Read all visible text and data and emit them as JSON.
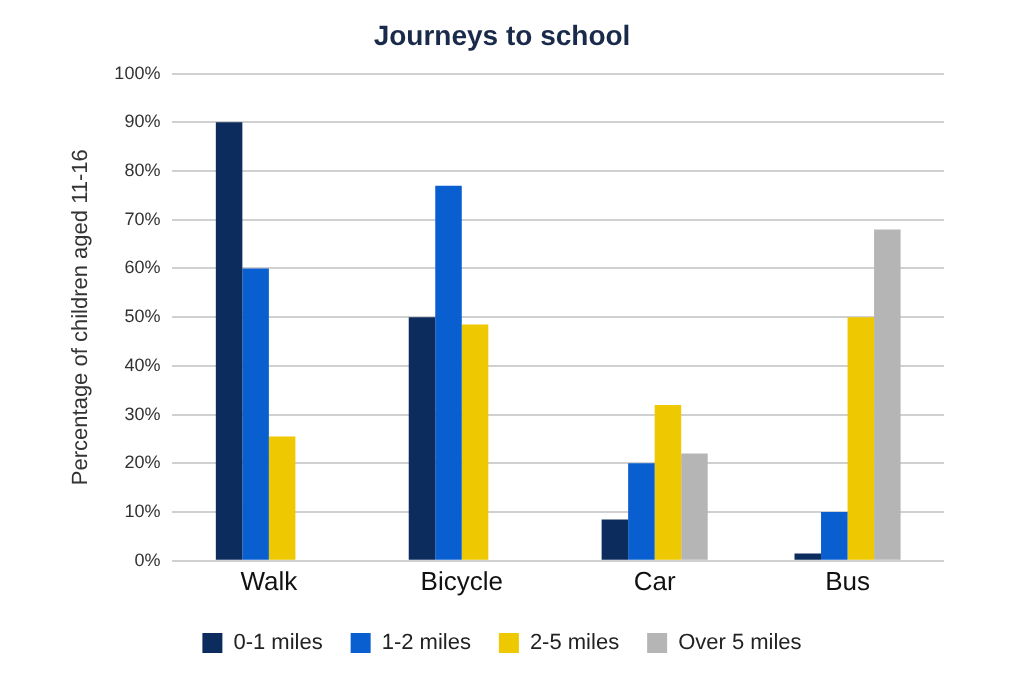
{
  "chart_data": {
    "type": "bar",
    "title": "Journeys to school",
    "ylabel": "Percentage of children aged 11-16",
    "categories": [
      "Walk",
      "Bicycle",
      "Car",
      "Bus"
    ],
    "series": [
      {
        "name": "0-1 miles",
        "color": "#0d2c5e",
        "values": [
          90,
          50,
          8.5,
          1.5
        ]
      },
      {
        "name": "1-2 miles",
        "color": "#0a5fd0",
        "values": [
          60,
          77,
          20,
          10
        ]
      },
      {
        "name": "2-5 miles",
        "color": "#eec800",
        "values": [
          25.5,
          48.5,
          32,
          50
        ]
      },
      {
        "name": "Over 5 miles",
        "color": "#b5b5b5",
        "values": [
          null,
          null,
          22,
          68
        ]
      }
    ],
    "ylim": [
      0,
      100
    ],
    "yticks": [
      {
        "value": 0,
        "label": "0%"
      },
      {
        "value": 10,
        "label": "10%"
      },
      {
        "value": 20,
        "label": "20%"
      },
      {
        "value": 30,
        "label": "30%"
      },
      {
        "value": 40,
        "label": "40%"
      },
      {
        "value": 50,
        "label": "50%"
      },
      {
        "value": 60,
        "label": "60%"
      },
      {
        "value": 70,
        "label": "70%"
      },
      {
        "value": 80,
        "label": "80%"
      },
      {
        "value": 90,
        "label": "90%"
      },
      {
        "value": 100,
        "label": "100%"
      }
    ],
    "grid": "y",
    "legend": "bottom"
  }
}
